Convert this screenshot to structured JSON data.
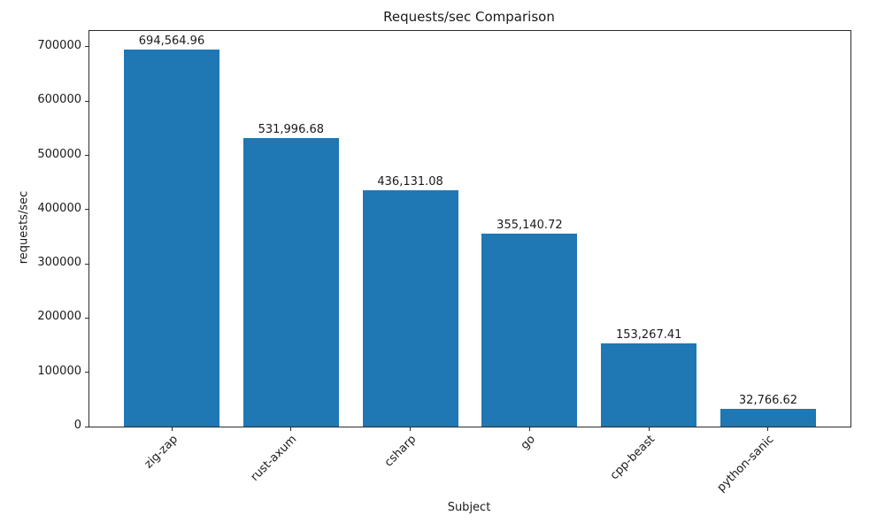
{
  "chart_data": {
    "type": "bar",
    "title": "Requests/sec Comparison",
    "xlabel": "Subject",
    "ylabel": "requests/sec",
    "categories": [
      "zig-zap",
      "rust-axum",
      "csharp",
      "go",
      "cpp-beast",
      "python-sanic"
    ],
    "values": [
      694564.96,
      531996.68,
      436131.08,
      355140.72,
      153267.41,
      32766.62
    ],
    "value_labels": [
      "694,564.96",
      "531,996.68",
      "436,131.08",
      "355,140.72",
      "153,267.41",
      "32,766.62"
    ],
    "yticks": [
      0,
      100000,
      200000,
      300000,
      400000,
      500000,
      600000,
      700000
    ],
    "ytick_labels": [
      "0",
      "100000",
      "200000",
      "300000",
      "400000",
      "500000",
      "600000",
      "700000"
    ],
    "ylim": [
      0,
      730000
    ],
    "bar_color": "#1f77b4",
    "grid": false,
    "legend": null,
    "background_color": "#ffffff"
  }
}
